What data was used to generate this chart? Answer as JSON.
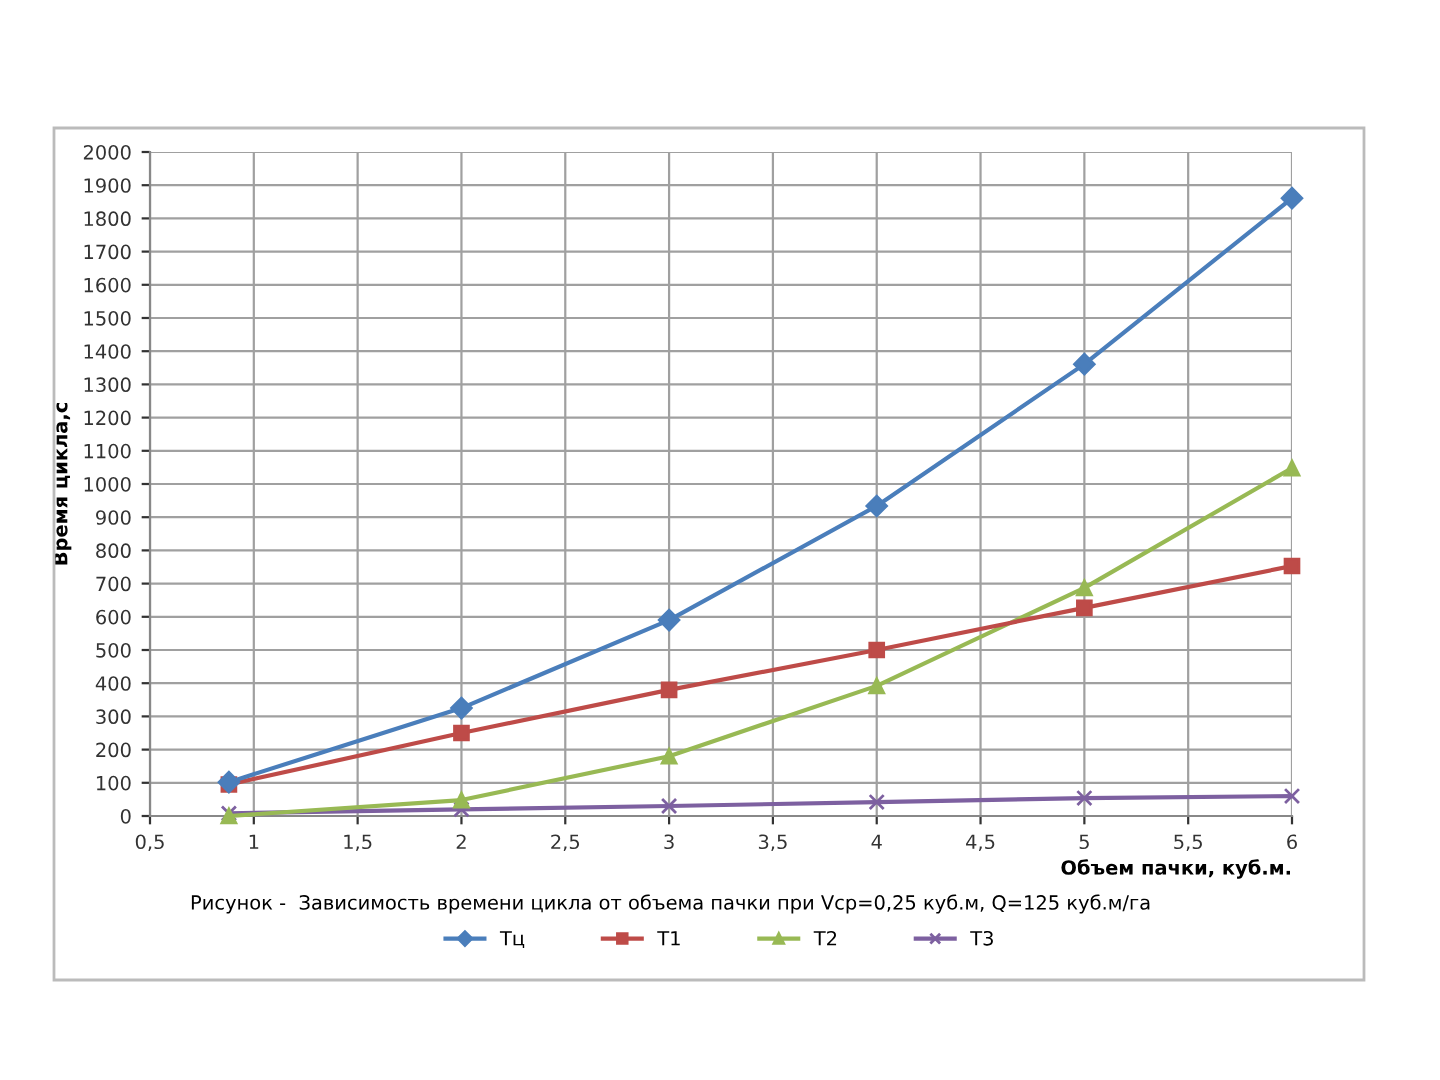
{
  "chart_data": {
    "type": "line",
    "xlabel": "Объем пачки, куб.м.",
    "ylabel": "Время цикла,с",
    "annotations": [
      "Рисунок -  Зависимость времени цикла от объема пачки при Vср=0,25 куб.м, Q=125 куб.м/га"
    ],
    "x": [
      0.88,
      2,
      3,
      4,
      5,
      6
    ],
    "series": [
      {
        "name": "Tц",
        "color": "#4a7ebb",
        "marker": "diamond",
        "values": [
          102,
          325,
          590,
          934,
          1361,
          1861
        ]
      },
      {
        "name": "T1",
        "color": "#be4b48",
        "marker": "square",
        "values": [
          95,
          250,
          380,
          500,
          627,
          753
        ]
      },
      {
        "name": "T2",
        "color": "#98b954",
        "marker": "triangle",
        "values": [
          0,
          48,
          180,
          392,
          687,
          1048
        ]
      },
      {
        "name": "T3",
        "color": "#7d60a0",
        "marker": "cross",
        "values": [
          8,
          20,
          30,
          42,
          54,
          60
        ]
      }
    ],
    "xlim": [
      0.5,
      6
    ],
    "xticks": [
      {
        "value": 0.5,
        "label": "0,5"
      },
      1,
      {
        "value": 1.5,
        "label": "1,5"
      },
      2,
      {
        "value": 2.5,
        "label": "2,5"
      },
      3,
      {
        "value": 3.5,
        "label": "3,5"
      },
      4,
      {
        "value": 4.5,
        "label": "4,5"
      },
      5,
      {
        "value": 5.5,
        "label": "5,5"
      },
      6
    ],
    "ylim": [
      0,
      2000
    ],
    "yticks": [
      0,
      100,
      200,
      300,
      400,
      500,
      600,
      700,
      800,
      900,
      1000,
      1100,
      1200,
      1300,
      1400,
      1500,
      1600,
      1700,
      1800,
      1900,
      2000
    ],
    "grid": true,
    "legend": "bottom",
    "line_style": "solid"
  }
}
